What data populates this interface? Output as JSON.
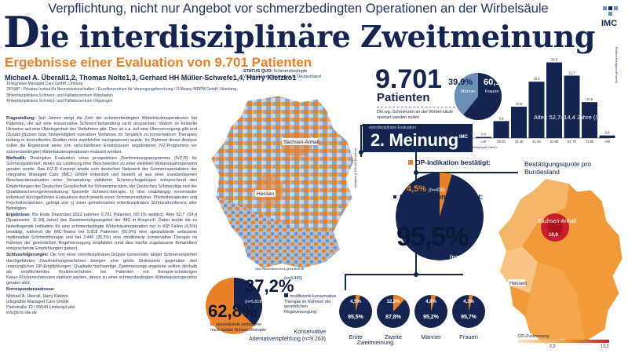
{
  "header": {
    "topline": "Verpflichtung, nicht nur Angebot vor schmerzbedingten Operationen an der Wirbelsäule",
    "title_dropcap": "D",
    "title_rest": "ie interdisziplinäre Zweitmeinung",
    "subtitle": "Ergebnisse einer Evaluation von 9.701 Patienten",
    "logo_text": "IMC",
    "authors": "Michael A. Überall1,2, Thomas Nolte1,3, Gerhard HH Müller-Schwefe1,4, Harry Kletzko1",
    "affiliations": [
      "1Integrative Managed Care GmbH, Limburg",
      "2IFNAP - Privates Institut für Neurowissenschaften / Exzellenzentrum für Versorgungsforschung / O.Meany-MDPM GmbH, Nürnberg",
      "3Interdisziplinäres Schmerz- und Palliativzentrum Wiesbaden",
      "4Interdisziplinäres Schmerz- und Palliativzentrum Göppingen"
    ]
  },
  "text": {
    "frage_h": "Fragestellung:",
    "frage": "Seit Jahren steigt die Zahl der schmerzbedingten Wirbelsäulenoperationen bei Patienten, die auf eine konservative Schmerz-behandlung nicht ansprechen, obwohl es keinerlei Hinweise auf eine Überlegenheit des Verfahrens gibt. Dies ist u.a. auf eine Überversorgung gibt und (Zusatz-)Nutzen bzw. Notwendigkeit operativer Verfahren im Vergleich zu konservativen Therapien bislang in kontrollierten Studien nicht zweifelsfrei nachgewiesen wurde. Im Rahmen dieser Analyse sollen die Ergebnisse eines von verschiedenen Ersatzkassen angebotenen IVZ-Programms vor schmerzbedingten Wirbelsäulenoperationen evaluiert werden.",
    "meth_h": "Methodik:",
    "meth": "Deskriptive Evaluation eines prospektiven Zweitmeinungsprogramms (IVZ-R) für Schmerzpatienten, denen zur Linderung ihrer Beschwerden zu einer elektiven Wirbelsäulenoperation geraten wurde. Das IVZ-R Konzept wurde vom deutschen Netzwerk der Schmerzspezialisten der Integrative Managed Care (IMC) GmbH entwickelt und besteht a) aus einer standardisierten Beschwerdeevaluation unter Verwendung validierter Schmerz-fragebogen entsprechend den Empfehlungen der Deutschen Gesellschaft für Schmerzme-dizin, der Deutschen Schmerzliga und der Qualitätssicherungsvereinbarung Spezielle Schmerz-therapie, b) drei unabhängig voneinander individuell durchgeführten Evaluations durch jeweils einen Schmerzmediziner, Physiotherapeuten und Psychotherapeuten, gefolgt von c) einer gemeinsamen interdisziplinären Schmerzkonferenz aller Beteiligten.",
    "erg_h": "Ergebnisse:",
    "erg": "Bis Ende Dezember 2022 nahmen 9.701 Patienten (60,1% weiblich, Alter 52,7 ±14,4 [Spannweite: 11-94] Jahre) das Zweitmeinungsangebot der IMC in Anspruch. Dabei wurde die zu hinterfragende Indikation für eine schmerzbedingte Wirbelsäulenoperation nur in 438 Fällen (4,5%) bestätigt, während die IMC-Teams bei 5.818 Patienten (60,0%) eine spezialisierte ambulante multimodale Schmerztherapie und bei 3.445 (35,5%) eine modifizierte konservative Therapie im Rahmen der gesetzlichen Regelversorgung empfahlen (und dies hierfür zugelassene Behandlern entsprechende Empfehlungen gaben).",
    "schl_h": "Schlussfolgerungen:",
    "schl": "Die von einer interdisziplinären Gruppe konservativ tätiger Schmerzexperten durchgeführten Zweitmeinungsverfahren belegen eine große Diskrepanz gegenüber den ursprünglichen OP-Empfehlungen. Qualitativ hochwertige Zweitmeinungs-angebote sollten deshalb als verpflichtendes Routineverfahren bei Patienten mit therapie-schwierigen Kreuz-/Rückenschmerzen etabliert werden, denen zu einer schmerzbedingten Wirbelsäulenoperation geraten wird.",
    "korr_h": "Korrespondenzadresse:",
    "korr": [
      "Michael A. Überall, Harry Kletzko",
      "Integrative Managed Care GmbH",
      "Parkstraße 13 | 65549 Limburg/Lahn",
      "info@imc-ide.de"
    ]
  },
  "status": {
    "label": "STATUS QUO:",
    "text": "Schmerzbedingte Wirbelsäulenoperationen in Deutschland",
    "state1": "Sachsen-Anhalt",
    "state2": "Hessen",
    "scale_note": "Häufigkeit je 100.000 Einwohner",
    "footer_note": "https://www.faktencheck-gesundheit.de"
  },
  "patients": {
    "count": "9.701",
    "label": "Patienten",
    "note": "Die wg. Schmerzen an der Wirbel-säule operiert werden sollen",
    "men_pct": "39,9%",
    "women_pct": "60,1%",
    "men_label": "Männer",
    "women_label": "Frauen"
  },
  "meinung": {
    "small": "Interdisziplinäre Evaluation",
    "label": "2. Meinung",
    "brand": "IMC"
  },
  "age_chart": {
    "ylabel": "Relative Häufigkeit (Prozent)",
    "xlabel": "Altersgruppe (Jahre)",
    "note": "Alter: 52,7±14,4 Jahre (Spannweite: 11-94)",
    "categories": [
      "≤18",
      "19-30",
      "31-40",
      "41-50",
      "51-60",
      "61-70",
      "71-80",
      ">80"
    ],
    "values": [
      0.4,
      5.9,
      10.9,
      19.6,
      26.3,
      21.7,
      12.5,
      0.9
    ],
    "value_labels": [
      "0,4",
      "5,9",
      "10,9",
      "19,6",
      "26,3",
      "21,7",
      "12,5",
      "0,9"
    ]
  },
  "chart_data": {
    "type": "bar",
    "categories": [
      "≤18",
      "19-30",
      "31-40",
      "41-50",
      "51-60",
      "61-70",
      "71-80",
      ">80"
    ],
    "values": [
      0.4,
      5.9,
      10.9,
      19.6,
      26.3,
      21.7,
      12.5,
      0.9
    ],
    "ylabel": "Relative Häufigkeit (Prozent)",
    "xlabel": "Altersgruppe (Jahre)",
    "ylim": [
      0,
      30
    ]
  },
  "op": {
    "bestaetigt_label": "OP-Indikation bestätigt:",
    "bestaetigt_pct": "4,5%",
    "bestaetigt_n": "(n=438)",
    "abgelehnt_label": "OP-Indikation abgelehnt:",
    "abgelehnt_pct": "95,5%",
    "abgelehnt_n": "(n=9.263)",
    "bestaetigt_fraction": 0.045
  },
  "alt": {
    "konserv_pct": "37,2%",
    "konserv_n": "(n=3.445)",
    "konserv_text": "modifizierte konservative Therapie im Rahmen der gesetzlichen Regelversorgung",
    "spez_pct": "62,8%",
    "spez_n": "(n=5.818)",
    "spez_text": "spezialisierte ambulante multimodale Schmerztherapie",
    "label": "Konservative Alternativempfehlung (n=9.263)",
    "konserv_fraction": 0.372
  },
  "smallpies": [
    {
      "top": "4,5%",
      "bottom": "95,5%",
      "label": "Erste",
      "frac": 0.045
    },
    {
      "top": "12,2%",
      "bottom": "87,8%",
      "label": "Zweite",
      "frac": 0.122
    },
    {
      "top": "4,8%",
      "bottom": "95,2%",
      "label": "Männer",
      "frac": 0.048
    },
    {
      "top": "4,3%",
      "bottom": "95,7%",
      "label": "Frauen",
      "frac": 0.043
    }
  ],
  "smallpies_group": "Zweitmeinung",
  "germany": {
    "title": "Bestätigungsquote pro Bundesland",
    "state1": "Sachsen-Anhalt",
    "state1_val": "10,8",
    "state2": "Hessen",
    "legend_label": "OP-Zustimmung",
    "legend_min": "2,2",
    "legend_max": "13,3"
  },
  "colors": {
    "navy": "#14264f",
    "orange": "#e8812a",
    "lightblue": "#6b8fb8",
    "red": "#c8202a"
  }
}
